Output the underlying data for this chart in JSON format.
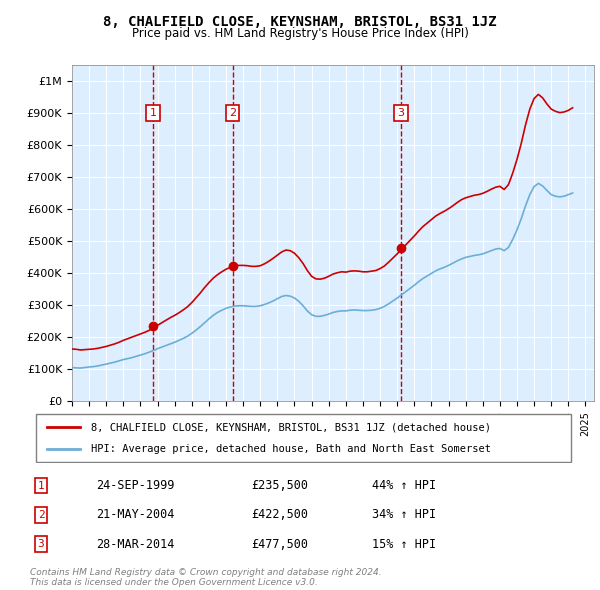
{
  "title": "8, CHALFIELD CLOSE, KEYNSHAM, BRISTOL, BS31 1JZ",
  "subtitle": "Price paid vs. HM Land Registry's House Price Index (HPI)",
  "legend_line1": "8, CHALFIELD CLOSE, KEYNSHAM, BRISTOL, BS31 1JZ (detached house)",
  "legend_line2": "HPI: Average price, detached house, Bath and North East Somerset",
  "transactions": [
    {
      "num": 1,
      "date": "24-SEP-1999",
      "price": 235500,
      "pct": "44%",
      "year_x": 1999.73
    },
    {
      "num": 2,
      "date": "21-MAY-2004",
      "price": 422500,
      "pct": "34%",
      "year_x": 2004.38
    },
    {
      "num": 3,
      "date": "28-MAR-2014",
      "price": 477500,
      "pct": "15%",
      "year_x": 2014.23
    }
  ],
  "footnote1": "Contains HM Land Registry data © Crown copyright and database right 2024.",
  "footnote2": "This data is licensed under the Open Government Licence v3.0.",
  "hpi_color": "#6baed6",
  "price_color": "#cc0000",
  "marker_color": "#cc0000",
  "vline_color": "#cc0000",
  "box_color": "#cc0000",
  "bg_color": "#ddeeff",
  "ylim_max": 1000000,
  "ylim_min": 0,
  "xlim_min": 1995,
  "xlim_max": 2025.5,
  "hpi_data": {
    "years": [
      1995.0,
      1995.25,
      1995.5,
      1995.75,
      1996.0,
      1996.25,
      1996.5,
      1996.75,
      1997.0,
      1997.25,
      1997.5,
      1997.75,
      1998.0,
      1998.25,
      1998.5,
      1998.75,
      1999.0,
      1999.25,
      1999.5,
      1999.75,
      2000.0,
      2000.25,
      2000.5,
      2000.75,
      2001.0,
      2001.25,
      2001.5,
      2001.75,
      2002.0,
      2002.25,
      2002.5,
      2002.75,
      2003.0,
      2003.25,
      2003.5,
      2003.75,
      2004.0,
      2004.25,
      2004.5,
      2004.75,
      2005.0,
      2005.25,
      2005.5,
      2005.75,
      2006.0,
      2006.25,
      2006.5,
      2006.75,
      2007.0,
      2007.25,
      2007.5,
      2007.75,
      2008.0,
      2008.25,
      2008.5,
      2008.75,
      2009.0,
      2009.25,
      2009.5,
      2009.75,
      2010.0,
      2010.25,
      2010.5,
      2010.75,
      2011.0,
      2011.25,
      2011.5,
      2011.75,
      2012.0,
      2012.25,
      2012.5,
      2012.75,
      2013.0,
      2013.25,
      2013.5,
      2013.75,
      2014.0,
      2014.25,
      2014.5,
      2014.75,
      2015.0,
      2015.25,
      2015.5,
      2015.75,
      2016.0,
      2016.25,
      2016.5,
      2016.75,
      2017.0,
      2017.25,
      2017.5,
      2017.75,
      2018.0,
      2018.25,
      2018.5,
      2018.75,
      2019.0,
      2019.25,
      2019.5,
      2019.75,
      2020.0,
      2020.25,
      2020.5,
      2020.75,
      2021.0,
      2021.25,
      2021.5,
      2021.75,
      2022.0,
      2022.25,
      2022.5,
      2022.75,
      2023.0,
      2023.25,
      2023.5,
      2023.75,
      2024.0,
      2024.25
    ],
    "values": [
      105000,
      104000,
      103500,
      105000,
      107000,
      108000,
      110000,
      113000,
      116000,
      119000,
      122000,
      126000,
      130000,
      133000,
      136000,
      140000,
      144000,
      148000,
      153000,
      158000,
      164000,
      169000,
      174000,
      179000,
      184000,
      190000,
      196000,
      203000,
      212000,
      222000,
      233000,
      245000,
      257000,
      268000,
      277000,
      284000,
      290000,
      294000,
      297000,
      298000,
      298000,
      297000,
      296000,
      296000,
      298000,
      302000,
      307000,
      313000,
      320000,
      327000,
      330000,
      328000,
      322000,
      312000,
      298000,
      282000,
      270000,
      265000,
      265000,
      268000,
      272000,
      277000,
      280000,
      282000,
      282000,
      284000,
      285000,
      284000,
      283000,
      283000,
      284000,
      286000,
      290000,
      296000,
      304000,
      313000,
      322000,
      332000,
      342000,
      352000,
      362000,
      373000,
      383000,
      391000,
      399000,
      407000,
      413000,
      418000,
      424000,
      431000,
      438000,
      444000,
      449000,
      452000,
      455000,
      457000,
      460000,
      465000,
      470000,
      475000,
      477000,
      470000,
      480000,
      505000,
      535000,
      570000,
      610000,
      645000,
      670000,
      680000,
      672000,
      658000,
      645000,
      640000,
      638000,
      640000,
      645000,
      650000
    ]
  },
  "price_data": {
    "years": [
      1995.0,
      1995.25,
      1995.5,
      1995.75,
      1996.0,
      1996.25,
      1996.5,
      1996.75,
      1997.0,
      1997.25,
      1997.5,
      1997.75,
      1998.0,
      1998.25,
      1998.5,
      1998.75,
      1999.0,
      1999.25,
      1999.5,
      1999.75,
      2000.0,
      2000.25,
      2000.5,
      2000.75,
      2001.0,
      2001.25,
      2001.5,
      2001.75,
      2002.0,
      2002.25,
      2002.5,
      2002.75,
      2003.0,
      2003.25,
      2003.5,
      2003.75,
      2004.0,
      2004.25,
      2004.5,
      2004.75,
      2005.0,
      2005.25,
      2005.5,
      2005.75,
      2006.0,
      2006.25,
      2006.5,
      2006.75,
      2007.0,
      2007.25,
      2007.5,
      2007.75,
      2008.0,
      2008.25,
      2008.5,
      2008.75,
      2009.0,
      2009.25,
      2009.5,
      2009.75,
      2010.0,
      2010.25,
      2010.5,
      2010.75,
      2011.0,
      2011.25,
      2011.5,
      2011.75,
      2012.0,
      2012.25,
      2012.5,
      2012.75,
      2013.0,
      2013.25,
      2013.5,
      2013.75,
      2014.0,
      2014.25,
      2014.5,
      2014.75,
      2015.0,
      2015.25,
      2015.5,
      2015.75,
      2016.0,
      2016.25,
      2016.5,
      2016.75,
      2017.0,
      2017.25,
      2017.5,
      2017.75,
      2018.0,
      2018.25,
      2018.5,
      2018.75,
      2019.0,
      2019.25,
      2019.5,
      2019.75,
      2020.0,
      2020.25,
      2020.5,
      2020.75,
      2021.0,
      2021.25,
      2021.5,
      2021.75,
      2022.0,
      2022.25,
      2022.5,
      2022.75,
      2023.0,
      2023.25,
      2023.5,
      2023.75,
      2024.0,
      2024.25
    ],
    "values": [
      163000,
      162000,
      160000,
      161000,
      162000,
      163000,
      165000,
      168000,
      171000,
      175000,
      179000,
      184000,
      190000,
      195000,
      200000,
      205000,
      210000,
      215000,
      221000,
      228000,
      237000,
      245000,
      253000,
      261000,
      268000,
      276000,
      285000,
      295000,
      308000,
      323000,
      338000,
      355000,
      370000,
      384000,
      395000,
      404000,
      412000,
      418000,
      422000,
      424000,
      424000,
      423000,
      421000,
      421000,
      423000,
      429000,
      437000,
      446000,
      456000,
      466000,
      472000,
      470000,
      462000,
      448000,
      430000,
      408000,
      390000,
      382000,
      381000,
      384000,
      390000,
      397000,
      401000,
      404000,
      403000,
      406000,
      407000,
      406000,
      404000,
      404000,
      406000,
      408000,
      414000,
      422000,
      434000,
      447000,
      460000,
      474000,
      488000,
      502000,
      516000,
      531000,
      545000,
      556000,
      567000,
      578000,
      586000,
      593000,
      601000,
      610000,
      620000,
      629000,
      635000,
      639000,
      643000,
      645000,
      649000,
      655000,
      662000,
      668000,
      671000,
      661000,
      676000,
      712000,
      755000,
      805000,
      863000,
      912000,
      945000,
      958000,
      947000,
      928000,
      912000,
      905000,
      901000,
      903000,
      908000,
      916000
    ]
  }
}
